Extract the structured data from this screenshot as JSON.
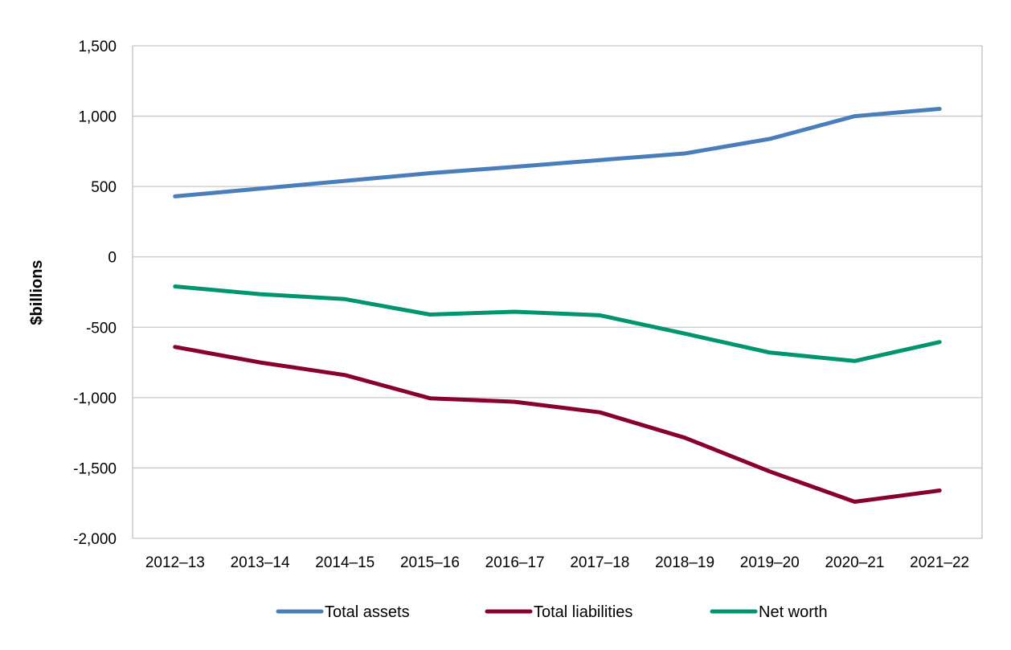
{
  "chart_data": {
    "type": "line",
    "title": "",
    "xlabel": "",
    "ylabel": "$billions",
    "ylim": [
      -2000,
      1500
    ],
    "yticks": [
      1500,
      1000,
      500,
      0,
      -500,
      -1000,
      -1500,
      -2000
    ],
    "ytick_labels": [
      "1,500",
      "1,000",
      "500",
      "0",
      "-500",
      "-1,000",
      "-1,500",
      "-2,000"
    ],
    "categories": [
      "2012–13",
      "2013–14",
      "2014–15",
      "2015–16",
      "2016–17",
      "2017–18",
      "2018–19",
      "2019–20",
      "2020–21",
      "2021–22"
    ],
    "grid": "horizontal",
    "legend_position": "bottom",
    "series": [
      {
        "name": "Total assets",
        "color": "#4a7ebb",
        "values": [
          430,
          485,
          540,
          595,
          640,
          688,
          735,
          838,
          1000,
          1052
        ]
      },
      {
        "name": "Total liabilities",
        "color": "#870031",
        "values": [
          -640,
          -750,
          -840,
          -1005,
          -1030,
          -1105,
          -1285,
          -1525,
          -1740,
          -1660
        ]
      },
      {
        "name": "Net worth",
        "color": "#00956e",
        "values": [
          -210,
          -265,
          -300,
          -410,
          -390,
          -415,
          -545,
          -680,
          -740,
          -605
        ]
      }
    ]
  }
}
